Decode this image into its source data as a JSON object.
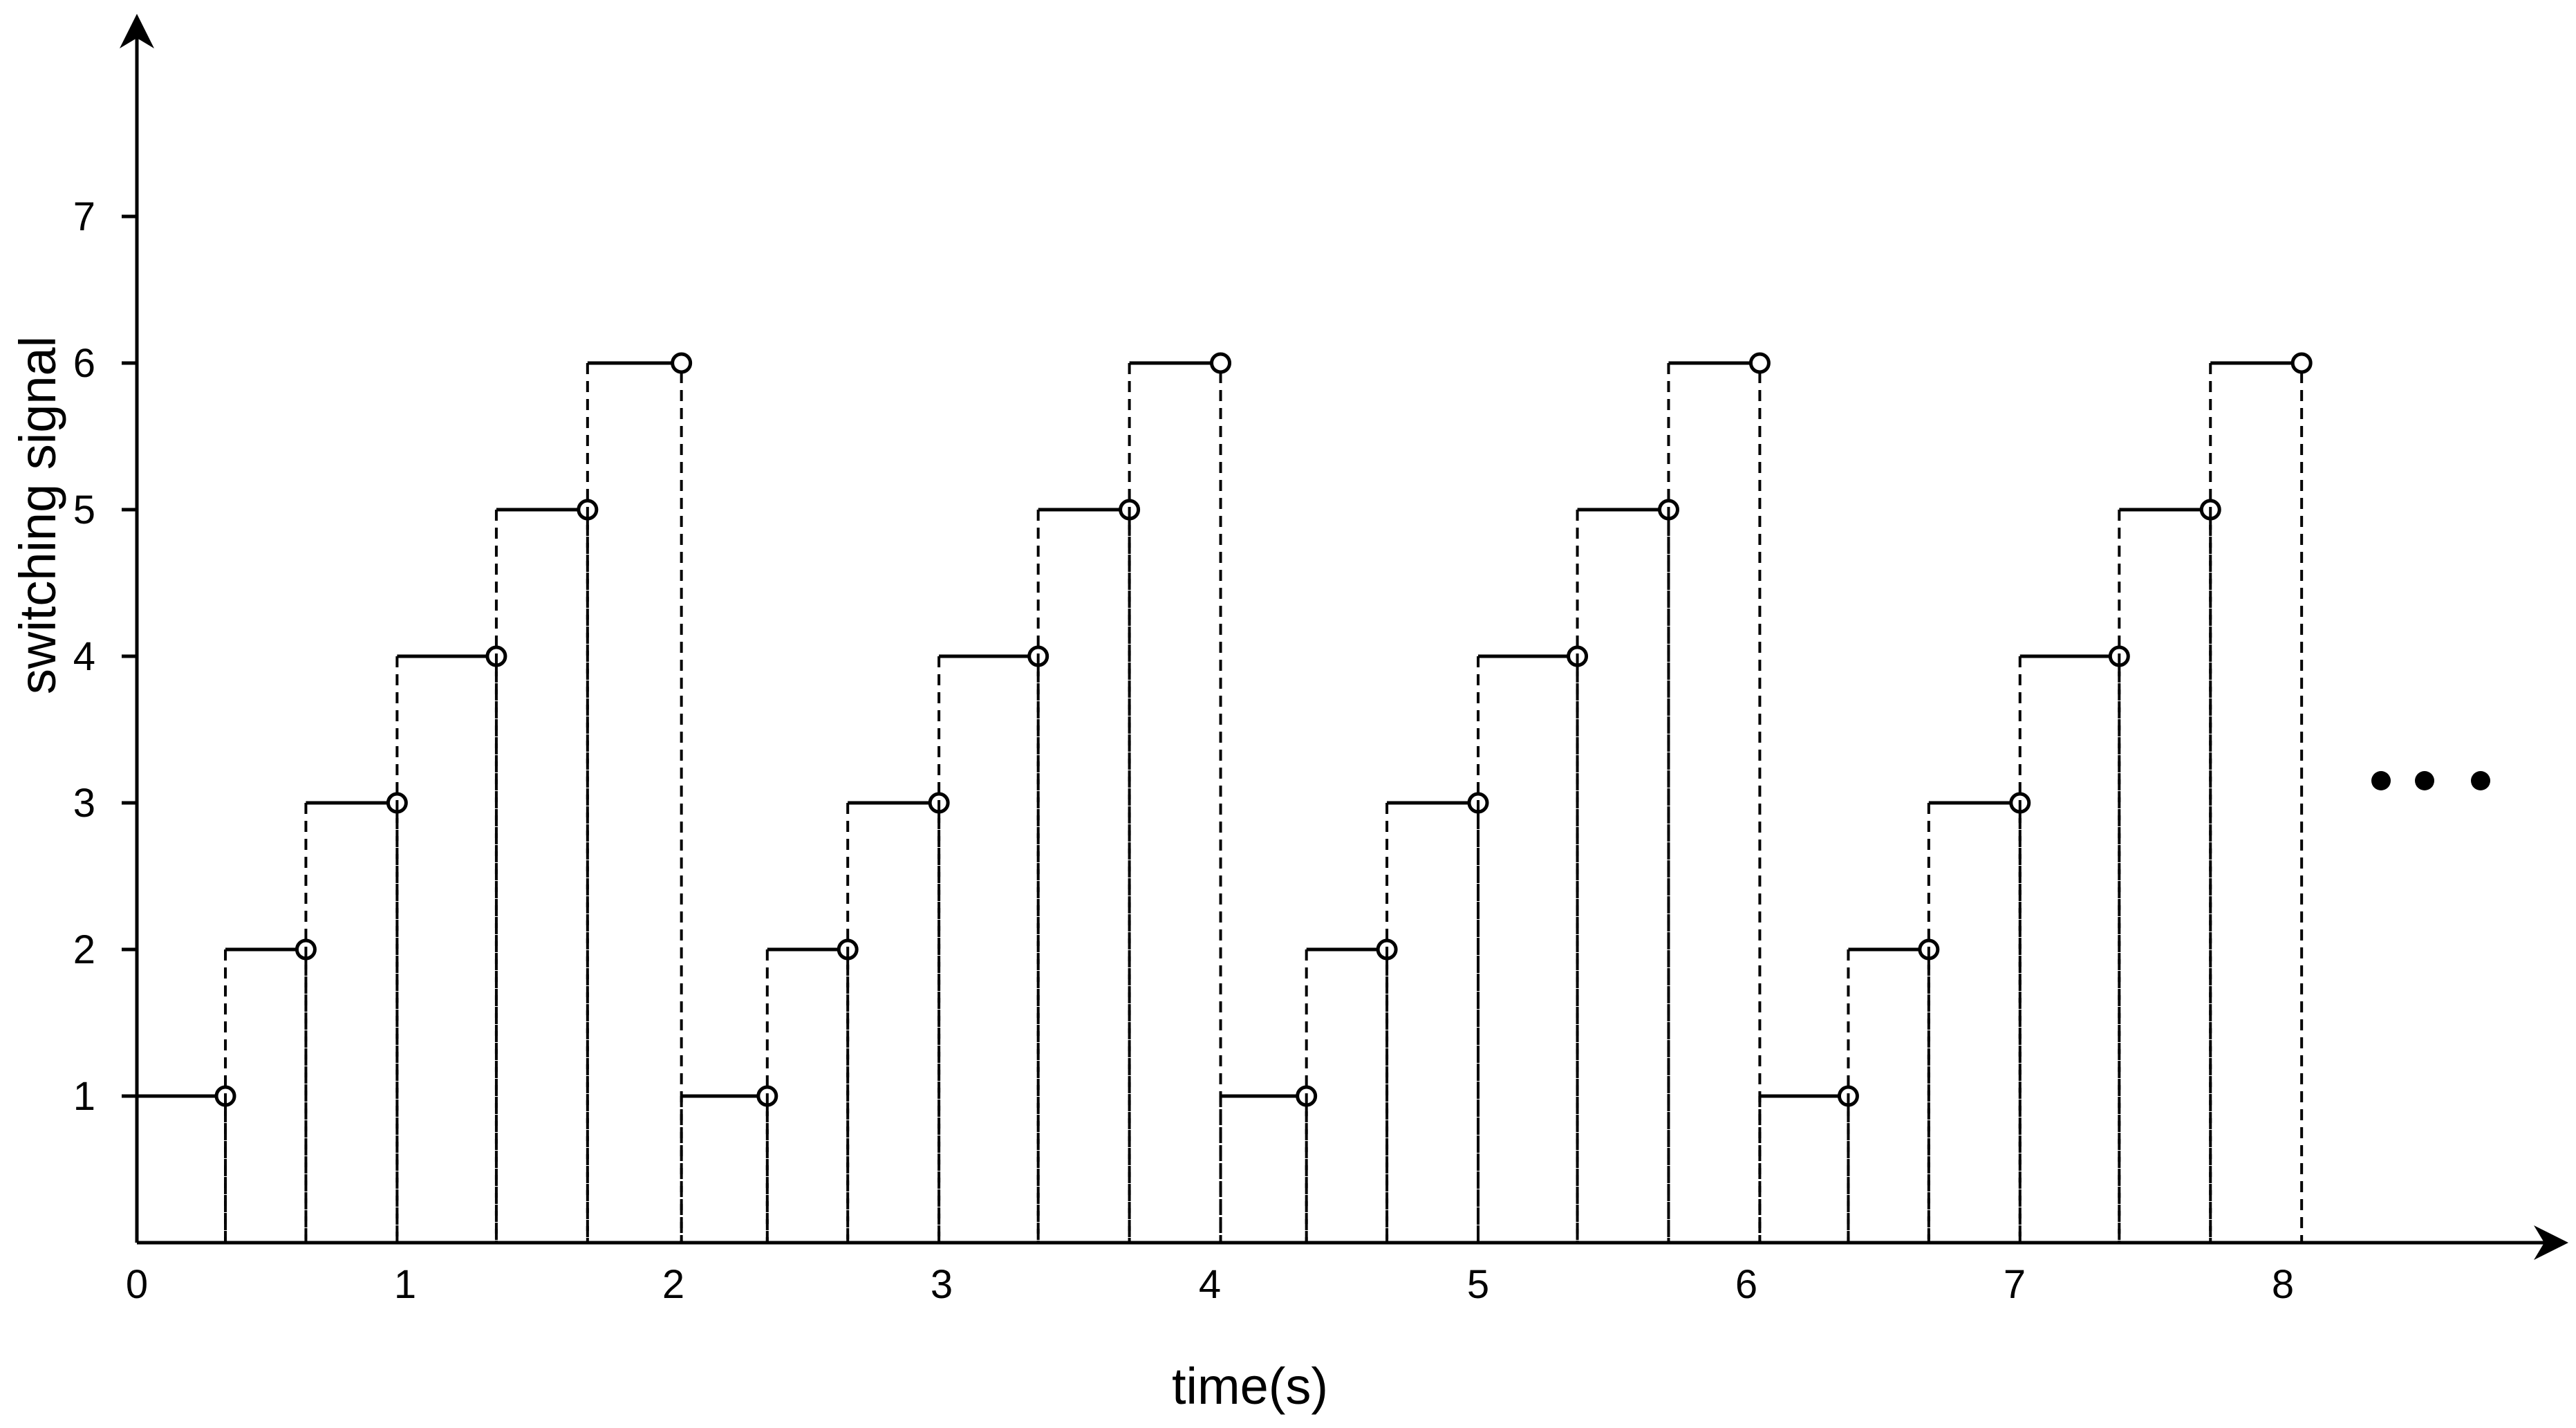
{
  "chart_data": {
    "type": "line",
    "title": "",
    "xlabel": "time(s)",
    "ylabel": "switching signal",
    "x_ticks": [
      {
        "value": 0,
        "label": "0"
      },
      {
        "value": 1,
        "label": "1"
      },
      {
        "value": 2,
        "label": "2"
      },
      {
        "value": 3,
        "label": "3"
      },
      {
        "value": 4,
        "label": "4"
      },
      {
        "value": 5,
        "label": "5"
      },
      {
        "value": 6,
        "label": "6"
      },
      {
        "value": 7,
        "label": "7"
      },
      {
        "value": 8,
        "label": "8"
      }
    ],
    "y_ticks": [
      {
        "value": 1,
        "label": "1"
      },
      {
        "value": 2,
        "label": "2"
      },
      {
        "value": 3,
        "label": "3"
      },
      {
        "value": 4,
        "label": "4"
      },
      {
        "value": 5,
        "label": "5"
      },
      {
        "value": 6,
        "label": "6"
      },
      {
        "value": 7,
        "label": "7"
      }
    ],
    "xlim": [
      0,
      9.0
    ],
    "ylim": [
      0,
      8.3
    ],
    "grid": false,
    "line_style": "step (solid horizontal segments, dashed vertical transitions, open circle at end of each segment)",
    "segments": [
      {
        "x_start": 0.0,
        "x_end": 0.33,
        "value": 1
      },
      {
        "x_start": 0.33,
        "x_end": 0.63,
        "value": 2
      },
      {
        "x_start": 0.63,
        "x_end": 0.97,
        "value": 3
      },
      {
        "x_start": 0.97,
        "x_end": 1.34,
        "value": 4
      },
      {
        "x_start": 1.34,
        "x_end": 1.68,
        "value": 5
      },
      {
        "x_start": 1.68,
        "x_end": 2.03,
        "value": 6
      },
      {
        "x_start": 2.03,
        "x_end": 2.35,
        "value": 1
      },
      {
        "x_start": 2.35,
        "x_end": 2.65,
        "value": 2
      },
      {
        "x_start": 2.65,
        "x_end": 2.99,
        "value": 3
      },
      {
        "x_start": 2.99,
        "x_end": 3.36,
        "value": 4
      },
      {
        "x_start": 3.36,
        "x_end": 3.7,
        "value": 5
      },
      {
        "x_start": 3.7,
        "x_end": 4.04,
        "value": 6
      },
      {
        "x_start": 4.04,
        "x_end": 4.36,
        "value": 1
      },
      {
        "x_start": 4.36,
        "x_end": 4.66,
        "value": 2
      },
      {
        "x_start": 4.66,
        "x_end": 5.0,
        "value": 3
      },
      {
        "x_start": 5.0,
        "x_end": 5.37,
        "value": 4
      },
      {
        "x_start": 5.37,
        "x_end": 5.71,
        "value": 5
      },
      {
        "x_start": 5.71,
        "x_end": 6.05,
        "value": 6
      },
      {
        "x_start": 6.05,
        "x_end": 6.38,
        "value": 1
      },
      {
        "x_start": 6.38,
        "x_end": 6.68,
        "value": 2
      },
      {
        "x_start": 6.68,
        "x_end": 7.02,
        "value": 3
      },
      {
        "x_start": 7.02,
        "x_end": 7.39,
        "value": 4
      },
      {
        "x_start": 7.39,
        "x_end": 7.73,
        "value": 5
      },
      {
        "x_start": 7.73,
        "x_end": 8.07,
        "value": 6
      }
    ],
    "continuation_marker": "ellipsis dots (sequence continues)"
  }
}
